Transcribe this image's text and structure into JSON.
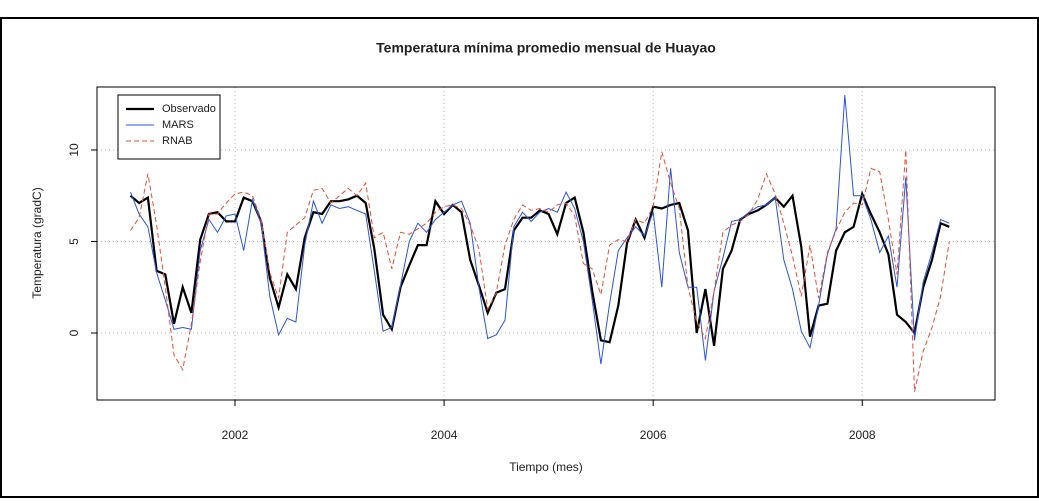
{
  "chart_data": {
    "type": "line",
    "title": "Temperatura mínima promedio mensual de Huayao",
    "xlabel": "Tiempo (mes)",
    "ylabel": "Temperatura (gradC)",
    "x": [
      2001.0,
      2001.083,
      2001.167,
      2001.25,
      2001.333,
      2001.417,
      2001.5,
      2001.583,
      2001.667,
      2001.75,
      2001.833,
      2001.917,
      2002.0,
      2002.083,
      2002.167,
      2002.25,
      2002.333,
      2002.417,
      2002.5,
      2002.583,
      2002.667,
      2002.75,
      2002.833,
      2002.917,
      2003.0,
      2003.083,
      2003.167,
      2003.25,
      2003.333,
      2003.417,
      2003.5,
      2003.583,
      2003.667,
      2003.75,
      2003.833,
      2003.917,
      2004.0,
      2004.083,
      2004.167,
      2004.25,
      2004.333,
      2004.417,
      2004.5,
      2004.583,
      2004.667,
      2004.75,
      2004.833,
      2004.917,
      2005.0,
      2005.083,
      2005.167,
      2005.25,
      2005.333,
      2005.417,
      2005.5,
      2005.583,
      2005.667,
      2005.75,
      2005.833,
      2005.917,
      2006.0,
      2006.083,
      2006.167,
      2006.25,
      2006.333,
      2006.417,
      2006.5,
      2006.583,
      2006.667,
      2006.75,
      2006.833,
      2006.917,
      2007.0,
      2007.083,
      2007.167,
      2007.25,
      2007.333,
      2007.417,
      2007.5,
      2007.583,
      2007.667,
      2007.75,
      2007.833,
      2007.917,
      2008.0,
      2008.083,
      2008.167,
      2008.25,
      2008.333,
      2008.417,
      2008.5,
      2008.583,
      2008.667,
      2008.75,
      2008.833
    ],
    "series": [
      {
        "name": "Observado",
        "color": "#000000",
        "dash": "solid",
        "width": 2.2,
        "values": [
          7.5,
          7.1,
          7.4,
          3.4,
          3.2,
          0.5,
          2.5,
          1.1,
          5.1,
          6.5,
          6.6,
          6.1,
          6.1,
          7.4,
          7.2,
          6.1,
          3.0,
          1.4,
          3.2,
          2.4,
          5.2,
          6.6,
          6.5,
          7.2,
          7.2,
          7.3,
          7.5,
          7.1,
          4.6,
          1.0,
          0.2,
          2.5,
          3.7,
          4.8,
          4.8,
          7.2,
          6.5,
          7.0,
          6.6,
          4.0,
          2.6,
          1.1,
          2.2,
          2.4,
          5.6,
          6.3,
          6.3,
          6.7,
          6.5,
          5.4,
          7.1,
          7.4,
          5.5,
          2.3,
          -0.4,
          -0.5,
          1.5,
          4.9,
          6.2,
          5.2,
          6.9,
          6.8,
          7.0,
          7.1,
          5.6,
          0.0,
          2.4,
          -0.7,
          3.5,
          4.5,
          6.2,
          6.5,
          6.7,
          7.0,
          7.4,
          6.9,
          7.5,
          4.7,
          -0.2,
          1.5,
          1.6,
          4.5,
          5.5,
          5.8,
          7.6,
          6.5,
          5.5,
          4.3,
          1.0,
          0.6,
          0.0,
          2.5,
          4.0,
          6.0,
          5.8
        ]
      },
      {
        "name": "MARS",
        "color": "#2b55e0",
        "dash": "solid",
        "width": 1,
        "values": [
          7.7,
          6.5,
          5.8,
          3.3,
          1.8,
          0.2,
          0.3,
          0.2,
          4.5,
          6.2,
          5.5,
          6.4,
          6.5,
          4.5,
          7.3,
          6.0,
          2.0,
          -0.1,
          0.8,
          0.6,
          4.8,
          7.2,
          6.0,
          7.0,
          6.8,
          6.9,
          6.7,
          6.5,
          3.4,
          0.1,
          0.3,
          2.6,
          5.0,
          6.0,
          5.5,
          6.2,
          6.6,
          7.0,
          7.2,
          6.0,
          2.5,
          -0.3,
          -0.1,
          0.7,
          5.8,
          6.6,
          6.1,
          6.6,
          6.8,
          6.6,
          7.7,
          6.8,
          5.0,
          1.8,
          -1.7,
          1.6,
          4.5,
          5.2,
          5.8,
          5.3,
          6.6,
          2.5,
          9.0,
          4.4,
          2.5,
          2.5,
          -1.5,
          2.3,
          4.1,
          6.1,
          6.2,
          6.6,
          6.9,
          7.0,
          7.4,
          4.0,
          2.4,
          0.1,
          -0.8,
          1.5,
          4.3,
          5.7,
          13.0,
          7.5,
          7.5,
          6.2,
          4.4,
          5.3,
          2.5,
          8.5,
          -0.4,
          2.8,
          4.4,
          6.2,
          6.0
        ]
      },
      {
        "name": "RNAB",
        "color": "#e8503a",
        "dash": "dashed",
        "width": 1,
        "values": [
          5.6,
          6.3,
          8.7,
          5.9,
          2.5,
          -1.2,
          -2.0,
          0.5,
          3.9,
          6.5,
          6.5,
          7.1,
          7.6,
          7.7,
          7.5,
          6.2,
          3.3,
          1.9,
          5.5,
          5.9,
          6.3,
          7.8,
          7.9,
          7.1,
          7.5,
          7.9,
          7.5,
          8.2,
          5.2,
          5.5,
          3.5,
          5.5,
          5.4,
          5.7,
          6.0,
          6.6,
          6.9,
          7.0,
          6.8,
          5.9,
          4.6,
          1.3,
          2.2,
          4.8,
          6.2,
          7.0,
          6.7,
          6.8,
          6.6,
          7.0,
          7.1,
          6.4,
          3.8,
          3.5,
          2.1,
          4.8,
          5.1,
          5.0,
          6.2,
          6.0,
          6.9,
          9.9,
          8.2,
          6.8,
          2.5,
          0.6,
          -0.3,
          2.3,
          5.5,
          5.9,
          6.1,
          6.5,
          7.3,
          8.7,
          7.6,
          6.0,
          4.2,
          2.0,
          4.8,
          1.9,
          4.4,
          5.6,
          6.6,
          7.1,
          7.0,
          9.0,
          8.8,
          6.2,
          3.2,
          10.0,
          -3.2,
          -1.0,
          0.3,
          2.0,
          5.0
        ]
      }
    ],
    "xlim": [
      2000.68,
      2009.27
    ],
    "xticks": [
      2002,
      2004,
      2006,
      2008
    ],
    "ylim": [
      -3.66,
      13.44
    ],
    "yticks": [
      0,
      5,
      10
    ],
    "grid": true,
    "legend": "topleft"
  }
}
